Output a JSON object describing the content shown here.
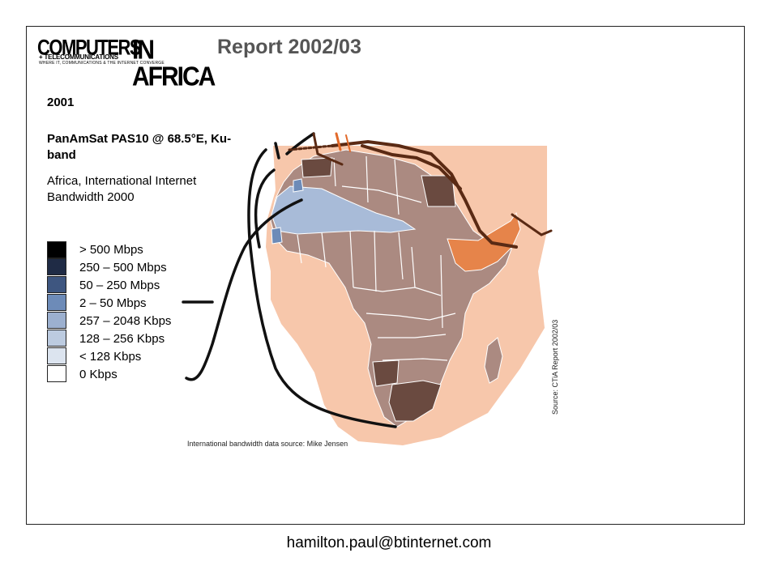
{
  "header": {
    "logo_word_1": "COMPUTERS",
    "logo_word_2": "IN AFRICA",
    "logo_sub_1": "+ TELECOMMUNICATIONS",
    "logo_sub_2": "WHERE IT, COMMUNICATIONS & THE INTERNET CONVERGE",
    "title": "Report 2002/03"
  },
  "left_panel": {
    "year": "2001",
    "satellite": "PanAmSat PAS10 @ 68.5°E, Ku-band",
    "map_title": "Africa, International Internet Bandwidth 2000"
  },
  "legend": {
    "items": [
      {
        "label": "> 500 Mbps",
        "color": "#000000"
      },
      {
        "label": "250 – 500 Mbps",
        "color": "#1f2b45"
      },
      {
        "label": "50 – 250 Mbps",
        "color": "#3e5680"
      },
      {
        "label": "2 – 50 Mbps",
        "color": "#6d8bb8"
      },
      {
        "label": "257 – 2048 Kbps",
        "color": "#9cb0cf"
      },
      {
        "label": "128 – 256 Kbps",
        "color": "#bccbe0"
      },
      {
        "label": "< 128 Kbps",
        "color": "#dce4ef"
      },
      {
        "label": "0 Kbps",
        "color": "#ffffff"
      }
    ]
  },
  "map": {
    "source_note": "International bandwidth data source: Mike Jensen",
    "side_credit": "Source: CTiA Report 2002/03",
    "colors": {
      "footprint": "#f7c7ab",
      "country_fill": "#ab8a81",
      "country_dark": "#6a4a40",
      "sahel_blue": "#a8bbd8",
      "beam_orange": "#e6844a",
      "beam_line": "#5a2a14",
      "border": "#ffffff"
    }
  },
  "footer": {
    "email": "hamilton.paul@btinternet.com"
  }
}
